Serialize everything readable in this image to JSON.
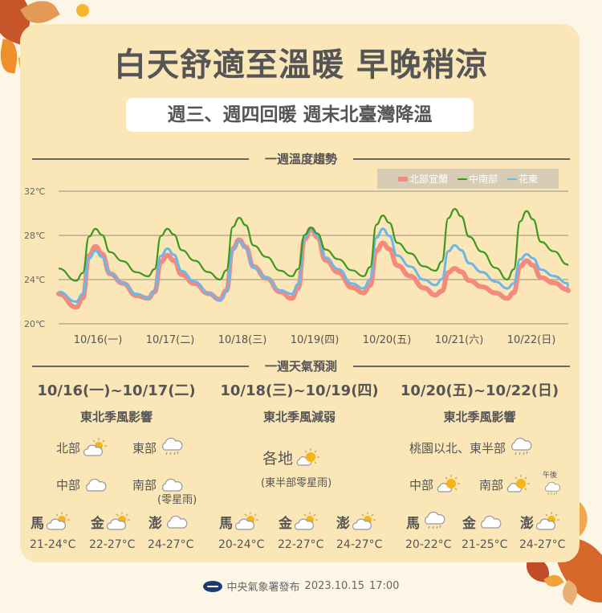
{
  "title": "白天舒適至溫暖 早晚稍涼",
  "subtitle": "週三、週四回暖  週末北臺灣降溫",
  "chart_section": {
    "heading": "一週溫度趨勢"
  },
  "forecast_section": {
    "heading": "一週天氣預測"
  },
  "colors": {
    "north_yilan": "#f28b7d",
    "central_south": "#3b9a1e",
    "hualien_taitung": "#6bb8e8",
    "panel": "#fbe6b8",
    "text": "#555555"
  },
  "chart_data": {
    "type": "line",
    "title": "一週溫度趨勢",
    "xlabel": "",
    "ylabel": "",
    "ylim": [
      20,
      32
    ],
    "yticks": [
      "20℃",
      "24℃",
      "28℃",
      "32℃"
    ],
    "grid": true,
    "legend_position": "top-right",
    "categories": [
      "10/16(一)",
      "10/17(二)",
      "10/18(三)",
      "10/19(四)",
      "10/20(五)",
      "10/21(六)",
      "10/22(日)"
    ],
    "series": [
      {
        "name": "北部宜蘭",
        "color": "#f28b7d",
        "daily_min": [
          21.5,
          22.3,
          22.2,
          22.3,
          22.8,
          22.6,
          22.3
        ],
        "daily_max": [
          27.0,
          26.2,
          27.6,
          28.6,
          27.3,
          25.0,
          25.7
        ],
        "start": 22.7,
        "end": 23.0
      },
      {
        "name": "中南部",
        "color": "#3b9a1e",
        "daily_min": [
          23.9,
          24.3,
          24.0,
          24.3,
          24.3,
          24.8,
          24.0
        ],
        "daily_max": [
          28.6,
          28.6,
          29.6,
          28.7,
          29.8,
          30.4,
          30.2
        ],
        "start": 25.0,
        "end": 25.3
      },
      {
        "name": "花東",
        "color": "#6bb8e8",
        "daily_min": [
          22.0,
          22.3,
          22.1,
          22.7,
          23.2,
          23.5,
          23.2
        ],
        "daily_max": [
          26.6,
          26.8,
          27.5,
          28.7,
          28.6,
          27.1,
          26.3
        ],
        "start": 22.9,
        "end": 23.3
      }
    ]
  },
  "forecast": [
    {
      "dates": "10/16(一)~10/17(二)",
      "description": "東北季風影響",
      "regions": [
        {
          "name": "北部",
          "icon": "partly-sunny-icon"
        },
        {
          "name": "東部",
          "icon": "cloud-rain-icon"
        },
        {
          "name": "中部",
          "icon": "cloud-icon"
        },
        {
          "name": "南部",
          "icon": "cloud-icon"
        }
      ],
      "note": "(零星雨)",
      "islands": [
        {
          "name": "馬",
          "icon": "partly-sunny-icon",
          "temp": "21-24°C"
        },
        {
          "name": "金",
          "icon": "partly-sunny-icon",
          "temp": "22-27°C"
        },
        {
          "name": "澎",
          "icon": "cloud-icon",
          "temp": "24-27°C"
        }
      ]
    },
    {
      "dates": "10/18(三)~10/19(四)",
      "description": "東北季風減弱",
      "regions": [
        {
          "name": "各地",
          "icon": "sunny-cloud-icon"
        }
      ],
      "note": "(東半部零星雨)",
      "islands": [
        {
          "name": "馬",
          "icon": "partly-sunny-icon",
          "temp": "20-24°C"
        },
        {
          "name": "金",
          "icon": "partly-sunny-icon",
          "temp": "22-27°C"
        },
        {
          "name": "澎",
          "icon": "partly-sunny-icon",
          "temp": "24-27°C"
        }
      ]
    },
    {
      "dates": "10/20(五)~10/22(日)",
      "description": "東北季風影響",
      "regions": [
        {
          "name": "桃園以北、東半部",
          "icon": "cloud-rain-icon"
        },
        {
          "name": "中部",
          "icon": "sunny-cloud-icon"
        },
        {
          "name": "南部",
          "icon": "sunny-cloud-icon"
        }
      ],
      "afternoon_label": "午後",
      "islands": [
        {
          "name": "馬",
          "icon": "cloud-rain-icon",
          "temp": "20-22°C"
        },
        {
          "name": "金",
          "icon": "cloud-icon",
          "temp": "21-25°C"
        },
        {
          "name": "澎",
          "icon": "partly-sunny-icon",
          "temp": "24-27°C"
        }
      ]
    }
  ],
  "footer": {
    "publisher": "中央氣象署發布",
    "date": "2023.10.15",
    "time": "17:00"
  }
}
